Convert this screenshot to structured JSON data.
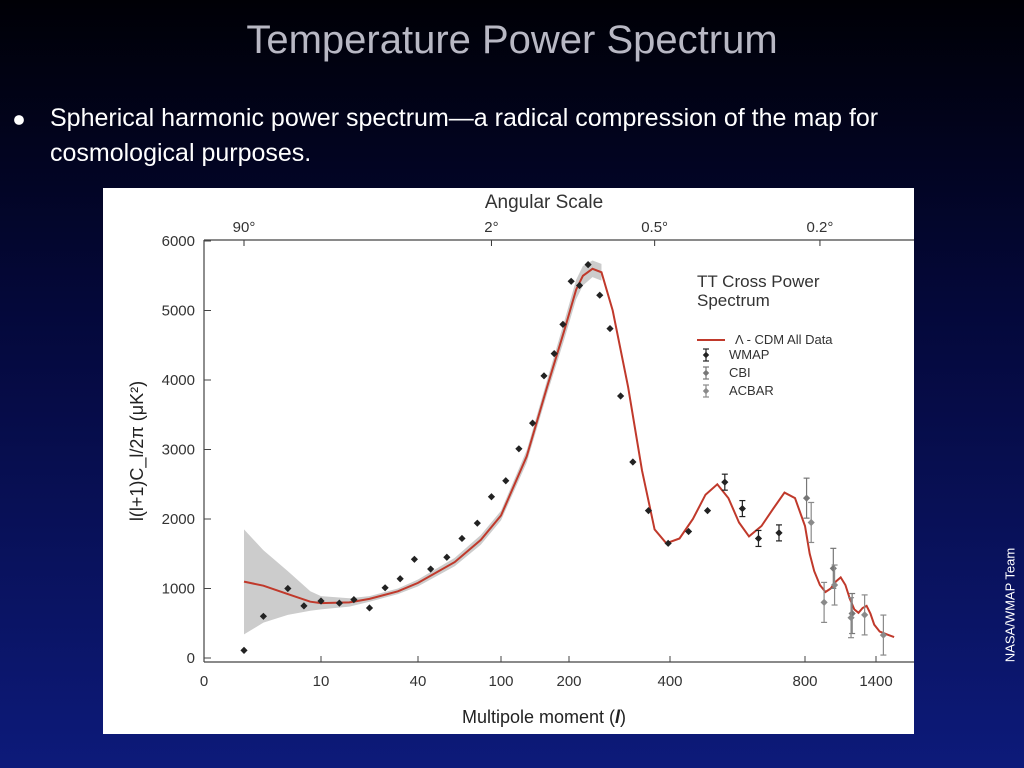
{
  "slide": {
    "title": "Temperature Power Spectrum",
    "bullet": "Spherical harmonic power spectrum—a radical compression of the map for cosmological purposes.",
    "credit": "NASA/WMAP Team"
  },
  "colors": {
    "model_curve": "#c0392b",
    "uncertainty_band": "#cccccc",
    "wmap": "#222222",
    "cbi": "#777777",
    "acbar": "#8a8a8a"
  },
  "chart_data": {
    "type": "scatter",
    "top_axis_title": "Angular Scale",
    "top_ticks": [
      {
        "label": "90°",
        "l": 2
      },
      {
        "label": "2°",
        "l": 90
      },
      {
        "label": "0.5°",
        "l": 360
      },
      {
        "label": "0.2°",
        "l": 900
      }
    ],
    "xlabel_prefix": "Multipole moment (",
    "xlabel_symbol": "l",
    "xlabel_suffix": ")",
    "ylabel": "l(l+1)C_l/2π (μK²)",
    "x_ticks": [
      "0",
      "10",
      "40",
      "100",
      "200",
      "400",
      "800",
      "1400"
    ],
    "y_ticks": [
      "0",
      "1000",
      "2000",
      "3000",
      "4000",
      "5000",
      "6000"
    ],
    "ylim": [
      0,
      6000
    ],
    "x_axis": "custom nonlinear scale (logarithmic at low multipoles, compressed at high multipoles)",
    "legend_title": "TT Cross Power Spectrum",
    "legend_position": "top-right",
    "legend": [
      "Λ - CDM All Data",
      "WMAP",
      "CBI",
      "ACBAR"
    ],
    "model": {
      "name": "Λ - CDM All Data",
      "l": [
        2,
        3,
        5,
        8,
        10,
        15,
        20,
        30,
        40,
        60,
        80,
        100,
        130,
        160,
        190,
        210,
        220,
        235,
        250,
        270,
        300,
        330,
        360,
        390,
        420,
        450,
        480,
        510,
        540,
        570,
        600,
        640,
        680,
        720,
        760,
        800,
        830,
        860,
        900,
        940,
        980,
        1020,
        1060,
        1100,
        1140,
        1180,
        1220,
        1260,
        1300,
        1340,
        1380,
        1420,
        1460,
        1500
      ],
      "value": [
        1100,
        1040,
        920,
        810,
        790,
        800,
        850,
        960,
        1080,
        1380,
        1700,
        2050,
        2900,
        3900,
        4700,
        5300,
        5500,
        5600,
        5550,
        5000,
        3900,
        2700,
        1850,
        1650,
        1720,
        2000,
        2350,
        2500,
        2300,
        1950,
        1750,
        1900,
        2150,
        2380,
        2300,
        1900,
        1500,
        1250,
        1050,
        950,
        1000,
        1100,
        1160,
        1050,
        850,
        700,
        650,
        720,
        750,
        640,
        480,
        380,
        340,
        300
      ]
    },
    "band": {
      "l": [
        2,
        3,
        5,
        8,
        10,
        15,
        20,
        30,
        40,
        60,
        80,
        100,
        130,
        160,
        190,
        210,
        220,
        235,
        250
      ],
      "upper": [
        1850,
        1550,
        1250,
        960,
        890,
        860,
        890,
        1000,
        1130,
        1440,
        1770,
        2120,
        2990,
        4000,
        4830,
        5440,
        5640,
        5720,
        5670
      ],
      "lower": [
        340,
        510,
        620,
        680,
        700,
        740,
        810,
        920,
        1030,
        1320,
        1630,
        1980,
        2810,
        3800,
        4570,
        5160,
        5360,
        5480,
        5430
      ]
    },
    "series": [
      {
        "name": "WMAP",
        "points": [
          {
            "l": 2,
            "y": 110
          },
          {
            "l": 3,
            "y": 600
          },
          {
            "l": 5,
            "y": 1000
          },
          {
            "l": 7,
            "y": 750
          },
          {
            "l": 10,
            "y": 820
          },
          {
            "l": 13,
            "y": 790
          },
          {
            "l": 16,
            "y": 840
          },
          {
            "l": 20,
            "y": 720
          },
          {
            "l": 25,
            "y": 1010
          },
          {
            "l": 31,
            "y": 1140
          },
          {
            "l": 38,
            "y": 1420
          },
          {
            "l": 46,
            "y": 1280
          },
          {
            "l": 55,
            "y": 1450
          },
          {
            "l": 65,
            "y": 1720
          },
          {
            "l": 77,
            "y": 1940
          },
          {
            "l": 90,
            "y": 2320
          },
          {
            "l": 105,
            "y": 2550
          },
          {
            "l": 120,
            "y": 3010
          },
          {
            "l": 138,
            "y": 3380
          },
          {
            "l": 155,
            "y": 4060
          },
          {
            "l": 172,
            "y": 4380
          },
          {
            "l": 188,
            "y": 4800
          },
          {
            "l": 203,
            "y": 5420
          },
          {
            "l": 215,
            "y": 5360
          },
          {
            "l": 228,
            "y": 5660
          },
          {
            "l": 247,
            "y": 5220
          },
          {
            "l": 265,
            "y": 4740
          },
          {
            "l": 285,
            "y": 3770
          },
          {
            "l": 310,
            "y": 2820
          },
          {
            "l": 345,
            "y": 2120
          },
          {
            "l": 395,
            "y": 1650
          },
          {
            "l": 440,
            "y": 1820
          },
          {
            "l": 485,
            "y": 2120
          },
          {
            "l": 530,
            "y": 2530
          },
          {
            "l": 580,
            "y": 2150
          },
          {
            "l": 630,
            "y": 1720
          },
          {
            "l": 700,
            "y": 1800
          }
        ]
      },
      {
        "name": "CBI",
        "points": [
          {
            "l": 810,
            "y": 2300
          },
          {
            "l": 1000,
            "y": 1290
          },
          {
            "l": 1160,
            "y": 640
          }
        ]
      },
      {
        "name": "ACBAR",
        "points": [
          {
            "l": 840,
            "y": 1950
          },
          {
            "l": 930,
            "y": 800
          },
          {
            "l": 1010,
            "y": 1050
          },
          {
            "l": 1150,
            "y": 580
          },
          {
            "l": 1280,
            "y": 620
          },
          {
            "l": 1440,
            "y": 330
          }
        ]
      }
    ]
  }
}
